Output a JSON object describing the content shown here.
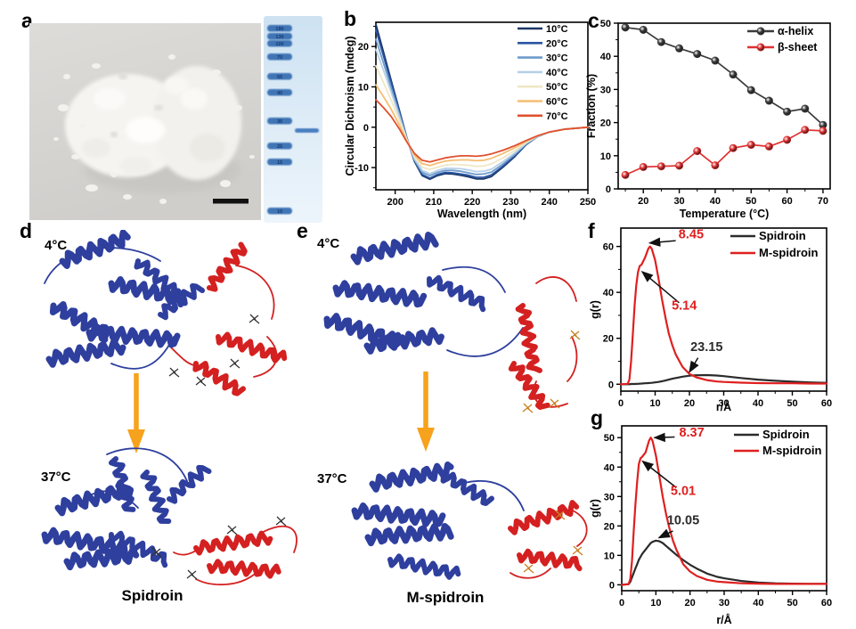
{
  "figure": {
    "bg": "#ffffff"
  },
  "colors": {
    "structure_blue": "#2e3f9e",
    "structure_red": "#d42020",
    "arrow_orange": "#f7a21c",
    "gel_band": "#3f74b5",
    "photo_bg": "#d8d6d2",
    "scale_bar": "#111111",
    "annotation_arrow": "#111111"
  },
  "panels": {
    "a": {
      "label": "a",
      "gel_ladder": [
        "180",
        "130",
        "100",
        "70",
        "55",
        "40",
        "35",
        "25",
        "15",
        "10"
      ]
    },
    "b": {
      "label": "b"
    },
    "c": {
      "label": "c"
    },
    "d": {
      "label": "d",
      "temp_top": "4°C",
      "temp_bottom": "37°C",
      "caption": "Spidroin"
    },
    "e": {
      "label": "e",
      "temp_top": "4°C",
      "temp_bottom": "37°C",
      "caption": "M-spidroin"
    },
    "f": {
      "label": "f"
    },
    "g": {
      "label": "g"
    }
  },
  "chart_data": [
    {
      "id": "b",
      "type": "line",
      "xlabel": "Wavelength (nm)",
      "ylabel": "Circular Dichroism (mdeg)",
      "xlim": [
        195,
        250
      ],
      "ylim": [
        -15.5,
        26
      ],
      "xticks": [
        200,
        210,
        220,
        230,
        240,
        250
      ],
      "xminor": [
        205,
        215,
        225,
        235,
        245
      ],
      "yticks": [
        -10,
        0,
        10,
        20
      ],
      "yminor": [
        -15,
        -5,
        5,
        15,
        25
      ],
      "legend_position": "top-right",
      "grid": false,
      "x": [
        195,
        197,
        199,
        201,
        203,
        205,
        207,
        209,
        211,
        213,
        215,
        217,
        219,
        221,
        223,
        225,
        228,
        231,
        234,
        237,
        240,
        244,
        250
      ],
      "series": [
        {
          "name": "10°C",
          "color": "#1c3866",
          "values": [
            25.5,
            18.5,
            11.5,
            4.5,
            -2.5,
            -8.5,
            -12.0,
            -12.9,
            -12.0,
            -11.5,
            -11.6,
            -11.9,
            -12.3,
            -12.8,
            -12.8,
            -12.2,
            -9.9,
            -7.3,
            -4.3,
            -2.3,
            -1.2,
            -0.5,
            0
          ]
        },
        {
          "name": "20°C",
          "color": "#2a55a2",
          "values": [
            24.2,
            17.5,
            10.9,
            4.2,
            -2.6,
            -8.4,
            -11.7,
            -12.6,
            -11.7,
            -11.2,
            -11.3,
            -11.6,
            -11.9,
            -12.4,
            -12.4,
            -11.8,
            -9.6,
            -7.1,
            -4.2,
            -2.3,
            -1.2,
            -0.5,
            0
          ]
        },
        {
          "name": "30°C",
          "color": "#6e9bcb",
          "values": [
            21.8,
            15.8,
            9.7,
            3.5,
            -2.7,
            -8.1,
            -11.2,
            -12.0,
            -11.2,
            -10.7,
            -10.7,
            -10.9,
            -11.3,
            -11.7,
            -11.6,
            -11.1,
            -9.1,
            -6.8,
            -4.1,
            -2.3,
            -1.2,
            -0.5,
            0
          ]
        },
        {
          "name": "40°C",
          "color": "#b7d0e7",
          "values": [
            19.3,
            14.0,
            8.6,
            2.9,
            -2.9,
            -7.8,
            -10.7,
            -11.5,
            -10.7,
            -10.2,
            -10.2,
            -10.3,
            -10.6,
            -11.0,
            -10.9,
            -10.4,
            -8.5,
            -6.4,
            -4.0,
            -2.2,
            -1.2,
            -0.5,
            0
          ]
        },
        {
          "name": "50°C",
          "color": "#efe7c4",
          "values": [
            15.2,
            11.0,
            6.6,
            1.9,
            -3.1,
            -7.4,
            -9.9,
            -10.5,
            -9.9,
            -9.4,
            -9.2,
            -9.3,
            -9.4,
            -9.7,
            -9.6,
            -9.1,
            -7.6,
            -5.8,
            -3.7,
            -2.2,
            -1.2,
            -0.5,
            0
          ]
        },
        {
          "name": "60°C",
          "color": "#f5bd72",
          "values": [
            10.5,
            7.5,
            4.4,
            0.7,
            -3.4,
            -6.9,
            -9.0,
            -9.5,
            -8.9,
            -8.4,
            -8.2,
            -8.1,
            -8.1,
            -8.3,
            -8.2,
            -7.7,
            -6.5,
            -5.1,
            -3.5,
            -2.1,
            -1.2,
            -0.5,
            0
          ]
        },
        {
          "name": "70°C",
          "color": "#e0502e",
          "values": [
            6.8,
            4.8,
            2.6,
            -0.3,
            -3.6,
            -6.5,
            -8.2,
            -8.6,
            -8.1,
            -7.6,
            -7.3,
            -7.1,
            -7.1,
            -7.2,
            -7.0,
            -6.6,
            -5.7,
            -4.6,
            -3.3,
            -2.1,
            -1.2,
            -0.5,
            0
          ]
        }
      ]
    },
    {
      "id": "c",
      "type": "line",
      "xlabel": "Temperature (°C)",
      "ylabel": "Fraction (%)",
      "xlim": [
        13,
        72
      ],
      "ylim": [
        0,
        50
      ],
      "xticks": [
        20,
        30,
        40,
        50,
        60,
        70
      ],
      "xminor": [
        15,
        25,
        35,
        45,
        55,
        65
      ],
      "yticks": [
        0,
        10,
        20,
        30,
        40,
        50
      ],
      "yminor": [
        5,
        15,
        25,
        35,
        45
      ],
      "legend_position": "top-right",
      "grid": false,
      "x": [
        15,
        20,
        25,
        30,
        35,
        40,
        45,
        50,
        55,
        60,
        65,
        70
      ],
      "series": [
        {
          "name": "α-helix",
          "color": "#3b3b3b",
          "marker": "sphere",
          "values": [
            48.7,
            48.0,
            44.3,
            42.4,
            40.7,
            38.7,
            34.5,
            29.8,
            26.6,
            23.3,
            24.2,
            19.3
          ]
        },
        {
          "name": "β-sheet",
          "color": "#e03131",
          "marker": "sphere",
          "values": [
            4.2,
            6.6,
            6.8,
            7.0,
            11.4,
            7.1,
            12.3,
            13.3,
            12.8,
            14.8,
            17.8,
            17.5
          ]
        }
      ]
    },
    {
      "id": "f",
      "type": "line",
      "xlabel": "r/Å",
      "ylabel": "g(r)",
      "xlim": [
        0,
        60
      ],
      "ylim": [
        -3,
        68
      ],
      "xticks": [
        0,
        10,
        20,
        30,
        40,
        50,
        60
      ],
      "xminor": [
        5,
        15,
        25,
        35,
        45,
        55
      ],
      "yticks": [
        0,
        20,
        40,
        60
      ],
      "yminor": [
        10,
        30,
        50
      ],
      "legend_position": "top-right",
      "grid": false,
      "x": [
        0,
        2,
        2.5,
        3,
        3.5,
        4,
        4.5,
        5,
        5.5,
        6,
        7,
        8,
        8.5,
        9,
        10,
        11,
        12,
        13,
        14,
        15,
        16,
        18,
        20,
        22,
        25,
        28,
        30,
        35,
        40,
        45,
        50,
        55,
        60
      ],
      "series": [
        {
          "name": "Spidroin",
          "color": "#2b2b2b",
          "values": [
            0,
            0,
            0,
            0.1,
            0.1,
            0.1,
            0.15,
            0.2,
            0.25,
            0.3,
            0.4,
            0.5,
            0.55,
            0.6,
            0.8,
            1.0,
            1.3,
            1.6,
            2.0,
            2.4,
            2.7,
            3.3,
            3.7,
            3.9,
            4.0,
            3.8,
            3.5,
            2.7,
            2.0,
            1.5,
            1.1,
            0.8,
            0.6
          ]
        },
        {
          "name": "M-spidroin",
          "color": "#e01f1f",
          "values": [
            0,
            0.2,
            2,
            10,
            22,
            34,
            43,
            49,
            51.5,
            52,
            55,
            59,
            60,
            59,
            54,
            46,
            37,
            29,
            22,
            17,
            13,
            7.5,
            4.5,
            3,
            1.8,
            1.2,
            1.0,
            0.7,
            0.5,
            0.4,
            0.4,
            0.3,
            0.3
          ]
        }
      ],
      "annotations": [
        {
          "text": "8.45",
          "color": "#e01f1f",
          "tpos": [
            20.5,
            63.5
          ],
          "from": [
            16,
            62.5
          ],
          "to": [
            8.4,
            61.5
          ]
        },
        {
          "text": "5.14",
          "color": "#e01f1f",
          "tpos": [
            18.5,
            32.5
          ],
          "from": [
            17,
            35.5
          ],
          "to": [
            6.2,
            49
          ]
        },
        {
          "text": "23.15",
          "color": "#2b2b2b",
          "tpos": [
            25,
            14.5
          ],
          "from": [
            22.5,
            11.5
          ],
          "to": [
            20,
            5.3
          ]
        }
      ]
    },
    {
      "id": "g",
      "type": "line",
      "xlabel": "r/Å",
      "ylabel": "g(r)",
      "xlim": [
        0,
        60
      ],
      "ylim": [
        -2,
        54
      ],
      "xticks": [
        0,
        10,
        20,
        30,
        40,
        50,
        60
      ],
      "xminor": [
        5,
        15,
        25,
        35,
        45,
        55
      ],
      "yticks": [
        0,
        10,
        20,
        30,
        40,
        50
      ],
      "yminor": [
        5,
        15,
        25,
        35,
        45
      ],
      "legend_position": "top-right",
      "grid": false,
      "x": [
        0,
        2,
        2.5,
        3,
        3.5,
        4,
        4.5,
        5,
        5.5,
        6,
        7,
        8,
        8.5,
        9,
        10,
        11,
        12,
        13,
        14,
        15,
        16,
        18,
        20,
        22,
        25,
        28,
        30,
        35,
        40,
        45,
        50,
        55,
        60
      ],
      "series": [
        {
          "name": "Spidroin",
          "color": "#2b2b2b",
          "values": [
            0,
            0.2,
            1,
            2.5,
            4,
            5.5,
            7,
            8.5,
            9.5,
            10.5,
            12,
            13.5,
            14.2,
            14.6,
            15,
            14.8,
            14.2,
            13.2,
            12.2,
            11.2,
            10.2,
            8.4,
            6.8,
            5.5,
            3.8,
            2.7,
            2.2,
            1.3,
            0.8,
            0.5,
            0.4,
            0.3,
            0.3
          ]
        },
        {
          "name": "M-spidroin",
          "color": "#e01f1f",
          "values": [
            0,
            0.2,
            2,
            8,
            18,
            27,
            35,
            41,
            43,
            43.5,
            45,
            49,
            50,
            49,
            44,
            37,
            30,
            24,
            19,
            15,
            12,
            7,
            4.5,
            3,
            1.7,
            1.1,
            0.9,
            0.5,
            0.4,
            0.3,
            0.3,
            0.3,
            0.3
          ]
        }
      ],
      "annotations": [
        {
          "text": "8.37",
          "color": "#e01f1f",
          "tpos": [
            20.5,
            50.3
          ],
          "from": [
            15.5,
            50.2
          ],
          "to": [
            9.6,
            50.0
          ]
        },
        {
          "text": "5.01",
          "color": "#e01f1f",
          "tpos": [
            18,
            30.5
          ],
          "from": [
            16,
            33
          ],
          "to": [
            6.1,
            42
          ]
        },
        {
          "text": "10.05",
          "color": "#2b2b2b",
          "tpos": [
            18,
            20.5
          ],
          "from": [
            15,
            18.3
          ],
          "to": [
            10.9,
            16
          ]
        }
      ]
    }
  ]
}
